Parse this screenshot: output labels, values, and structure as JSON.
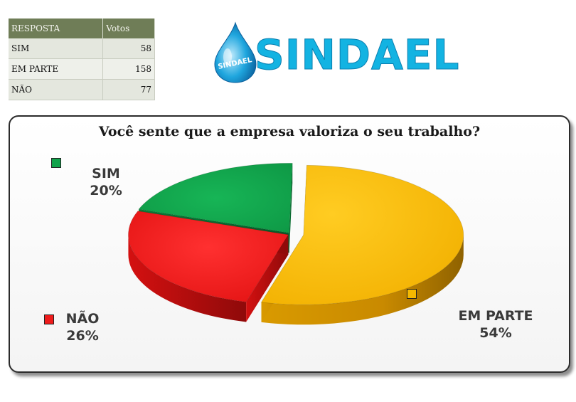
{
  "table": {
    "header": [
      "RESPOSTA",
      "Votos"
    ],
    "rows": [
      {
        "label": "SIM",
        "value": "58"
      },
      {
        "label": "EM PARTE",
        "value": "158"
      },
      {
        "label": "NÃO",
        "value": "77"
      }
    ]
  },
  "logo": {
    "wordmark": "SINDAEL",
    "drop_text": "SINDAEL",
    "colors": {
      "text": "#13b3e2",
      "drop": "#1fa6de"
    }
  },
  "chart_data": {
    "type": "pie",
    "title": "Você sente que a empresa valoriza o seu trabalho?",
    "slices": [
      {
        "name": "SIM",
        "value": 58,
        "percent_label": "20%",
        "color": "#10a24a"
      },
      {
        "name": "EM PARTE",
        "value": 158,
        "percent_label": "54%",
        "color": "#f5b800",
        "exploded": true
      },
      {
        "name": "NÃO",
        "value": 77,
        "percent_label": "26%",
        "color": "#ee1c1c"
      }
    ],
    "style": "3d-exploded"
  }
}
